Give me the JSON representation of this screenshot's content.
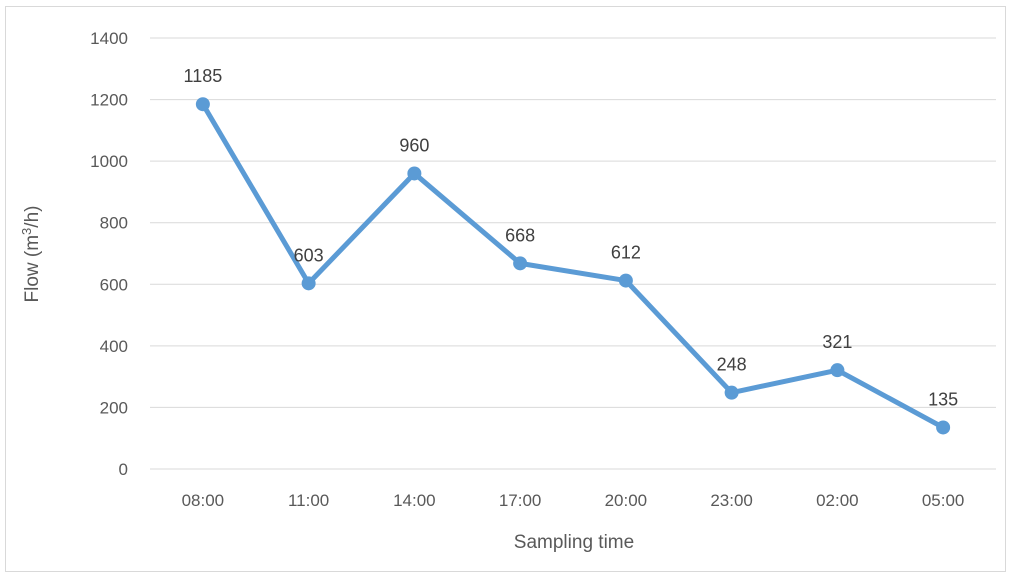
{
  "chart_data": {
    "type": "line",
    "title": "",
    "xlabel": "Sampling time",
    "ylabel_main": "Flow (m",
    "ylabel_sup": "3",
    "ylabel_end": "/h)",
    "categories": [
      "08:00",
      "11:00",
      "14:00",
      "17:00",
      "20:00",
      "23:00",
      "02:00",
      "05:00"
    ],
    "series": [
      {
        "values": [
          1185,
          603,
          960,
          668,
          612,
          248,
          321,
          135
        ],
        "color": "#5B9BD5"
      }
    ],
    "ylim": [
      0,
      1400
    ],
    "yticks": [
      0,
      200,
      400,
      600,
      800,
      1000,
      1200,
      1400
    ],
    "grid": true,
    "legend": "none",
    "data_labels": true
  }
}
